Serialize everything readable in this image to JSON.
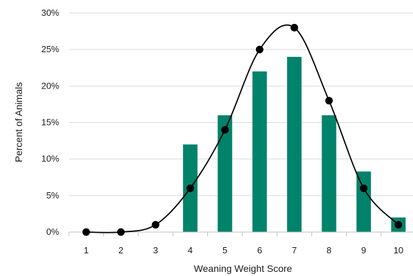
{
  "chart_data": {
    "type": "bar",
    "title": "",
    "xlabel": "Weaning Weight Score",
    "ylabel": "Percent of Animals",
    "categories": [
      "1",
      "2",
      "3",
      "4",
      "5",
      "6",
      "7",
      "8",
      "9",
      "10"
    ],
    "ylim": [
      0,
      30
    ],
    "y_ticks": [
      "0%",
      "5%",
      "10%",
      "15%",
      "20%",
      "25%",
      "30%"
    ],
    "grid": true,
    "series": [
      {
        "type": "bar",
        "values": [
          0,
          0,
          0,
          12,
          16,
          22,
          24,
          16,
          8.3,
          2
        ],
        "color": "#00836a"
      },
      {
        "type": "line",
        "smooth": true,
        "markers": true,
        "values": [
          0,
          0,
          1,
          6,
          14,
          25,
          28,
          18,
          6,
          1
        ],
        "color": "#000000"
      }
    ]
  }
}
